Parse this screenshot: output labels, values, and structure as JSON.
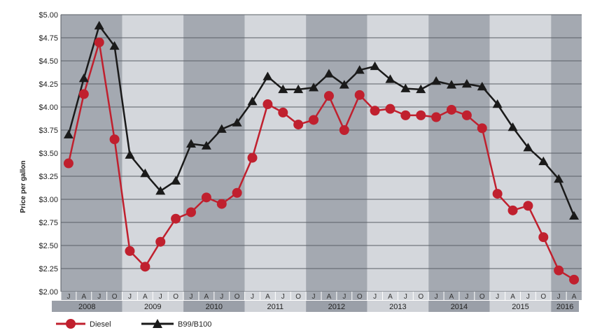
{
  "chart_data": {
    "type": "line",
    "ylabel": "Price per gallon",
    "ylim": [
      2.0,
      5.0
    ],
    "y_ticks": [
      {
        "value": 5.0,
        "label": "$5.00"
      },
      {
        "value": 4.75,
        "label": "$4.75"
      },
      {
        "value": 4.5,
        "label": "$4.50"
      },
      {
        "value": 4.25,
        "label": "$4.25"
      },
      {
        "value": 4.0,
        "label": "$4.00"
      },
      {
        "value": 3.75,
        "label": "$3.75"
      },
      {
        "value": 3.5,
        "label": "$3.50"
      },
      {
        "value": 3.25,
        "label": "$3.25"
      },
      {
        "value": 3.0,
        "label": "$3.00"
      },
      {
        "value": 2.75,
        "label": "$2.75"
      },
      {
        "value": 2.5,
        "label": "$2.50"
      },
      {
        "value": 2.25,
        "label": "$2.25"
      },
      {
        "value": 2.0,
        "label": "$2.00"
      }
    ],
    "categories": [
      "J",
      "A",
      "J",
      "O",
      "J",
      "A",
      "J",
      "O",
      "J",
      "A",
      "J",
      "O",
      "J",
      "A",
      "J",
      "O",
      "J",
      "A",
      "J",
      "O",
      "J",
      "A",
      "J",
      "O",
      "J",
      "A",
      "J",
      "O",
      "J",
      "A",
      "J",
      "O",
      "J",
      "A"
    ],
    "years": [
      {
        "label": "2008",
        "start": 0,
        "count": 4
      },
      {
        "label": "2009",
        "start": 4,
        "count": 4
      },
      {
        "label": "2010",
        "start": 8,
        "count": 4
      },
      {
        "label": "2011",
        "start": 12,
        "count": 4
      },
      {
        "label": "2012",
        "start": 16,
        "count": 4
      },
      {
        "label": "2013",
        "start": 20,
        "count": 4
      },
      {
        "label": "2014",
        "start": 24,
        "count": 4
      },
      {
        "label": "2015",
        "start": 28,
        "count": 4
      },
      {
        "label": "2016",
        "start": 32,
        "count": 2
      }
    ],
    "grid": true,
    "legend_position": "bottom-left",
    "series": [
      {
        "name": "Diesel",
        "color": "#c0202e",
        "marker": "circle",
        "values": [
          3.39,
          4.14,
          4.7,
          3.65,
          2.44,
          2.27,
          2.54,
          2.79,
          2.86,
          3.02,
          2.95,
          3.07,
          3.45,
          4.03,
          3.94,
          3.81,
          3.86,
          4.12,
          3.75,
          4.13,
          3.96,
          3.98,
          3.91,
          3.91,
          3.89,
          3.97,
          3.91,
          3.77,
          3.06,
          2.88,
          2.93,
          2.59,
          2.23,
          2.13
        ]
      },
      {
        "name": "B99/B100",
        "color": "#1a1a1a",
        "marker": "triangle",
        "values": [
          3.7,
          4.31,
          4.88,
          4.66,
          3.48,
          3.28,
          3.09,
          3.2,
          3.6,
          3.58,
          3.76,
          3.83,
          4.06,
          4.33,
          4.19,
          4.19,
          4.21,
          4.36,
          4.24,
          4.4,
          4.44,
          4.3,
          4.2,
          4.19,
          4.28,
          4.24,
          4.25,
          4.22,
          4.03,
          3.78,
          3.56,
          3.41,
          3.22,
          2.82
        ]
      }
    ]
  },
  "colors": {
    "band_dark": "#a4a9b1",
    "band_light": "#d4d7dc",
    "month_dark": "#a4a9b1",
    "month_light": "#d4d7dc",
    "year_dark": "#9a9fa8",
    "year_light": "#cfd2d7"
  }
}
